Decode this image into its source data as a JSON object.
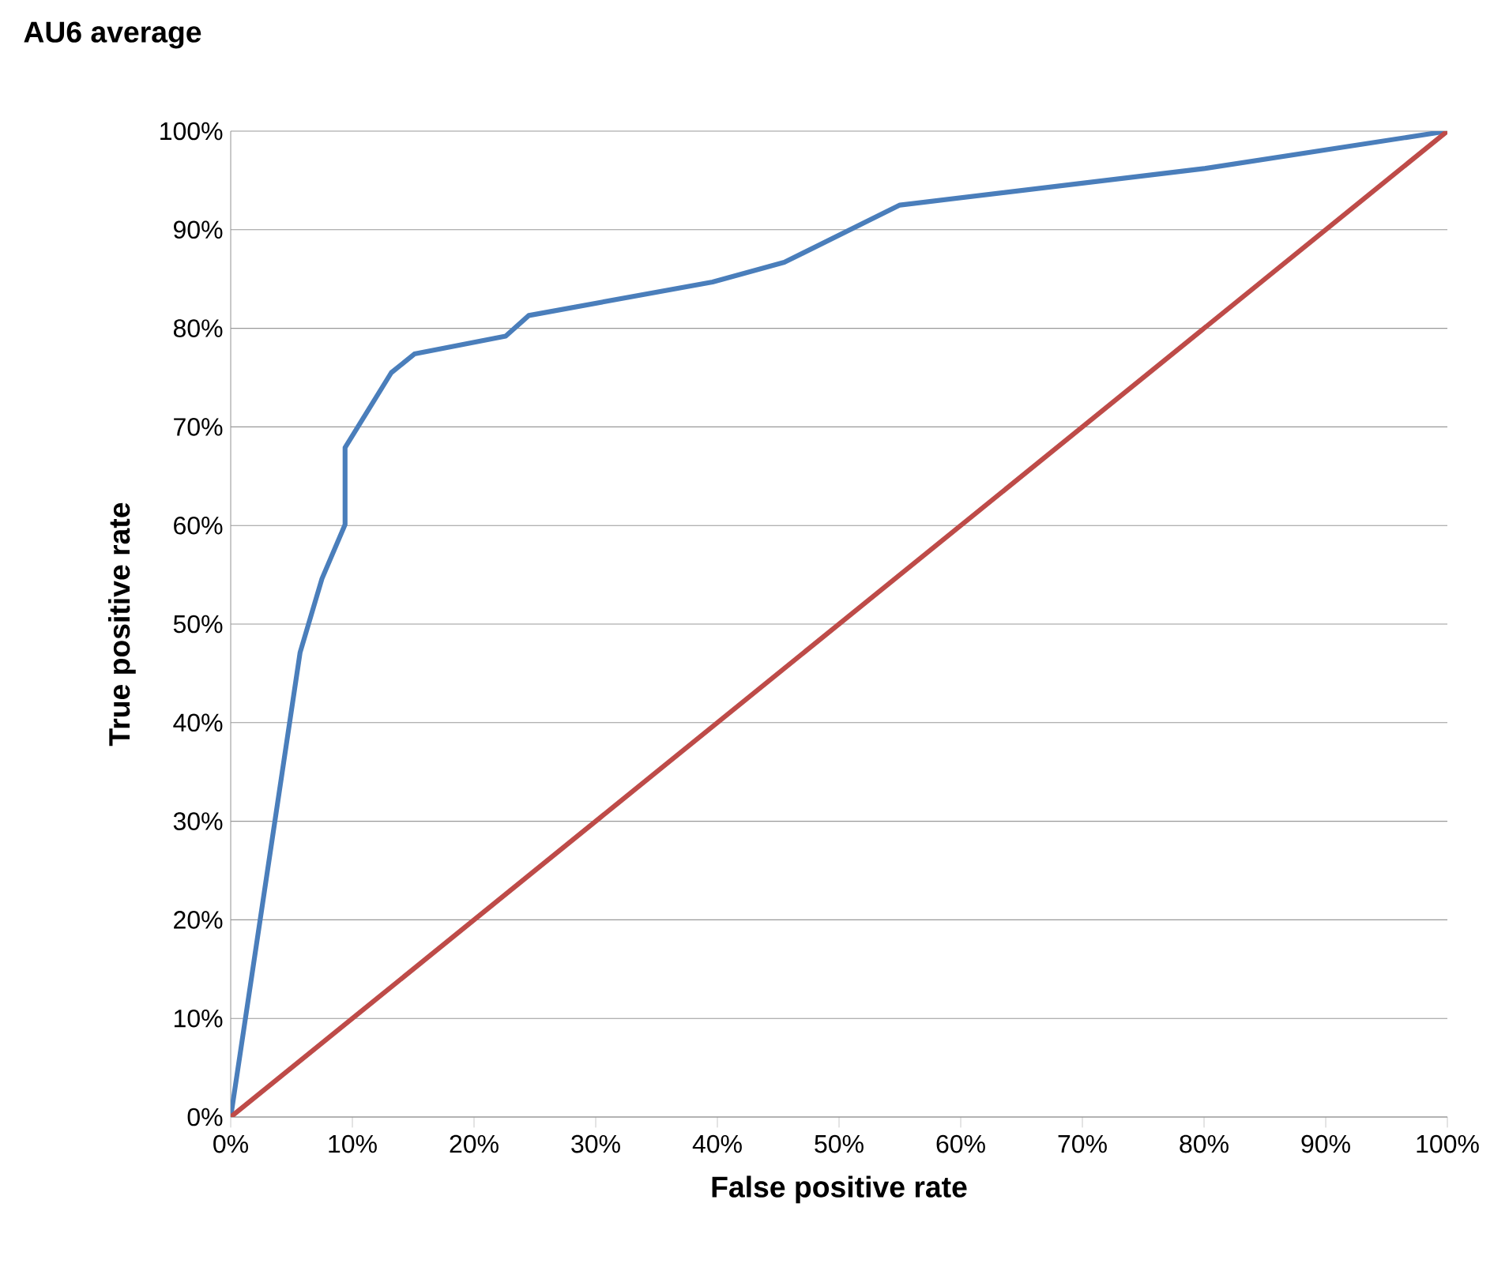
{
  "chart_data": {
    "type": "line",
    "title": "AU6 average",
    "xlabel": "False positive rate",
    "ylabel": "True positive rate",
    "xlim": [
      0,
      100
    ],
    "ylim": [
      0,
      100
    ],
    "xticks": [
      {
        "value": 0,
        "label": "0%"
      },
      {
        "value": 10,
        "label": "10%"
      },
      {
        "value": 20,
        "label": "20%"
      },
      {
        "value": 30,
        "label": "30%"
      },
      {
        "value": 40,
        "label": "40%"
      },
      {
        "value": 50,
        "label": "50%"
      },
      {
        "value": 60,
        "label": "60%"
      },
      {
        "value": 70,
        "label": "70%"
      },
      {
        "value": 80,
        "label": "80%"
      },
      {
        "value": 90,
        "label": "90%"
      },
      {
        "value": 100,
        "label": "100%"
      }
    ],
    "yticks": [
      {
        "value": 0,
        "label": "0%"
      },
      {
        "value": 10,
        "label": "10%"
      },
      {
        "value": 20,
        "label": "20%"
      },
      {
        "value": 30,
        "label": "30%"
      },
      {
        "value": 40,
        "label": "40%"
      },
      {
        "value": 50,
        "label": "50%"
      },
      {
        "value": 60,
        "label": "60%"
      },
      {
        "value": 70,
        "label": "70%"
      },
      {
        "value": 80,
        "label": "80%"
      },
      {
        "value": 90,
        "label": "90%"
      },
      {
        "value": 100,
        "label": "100%"
      }
    ],
    "grid": "y",
    "marker": "none",
    "line_style": "solid",
    "series": [
      {
        "color": "#4a7ebb",
        "x": [
          0,
          5.7,
          7.5,
          9.4,
          9.4,
          13.2,
          15.1,
          22.6,
          24.5,
          39.6,
          45.5,
          55.0,
          80.0,
          100
        ],
        "values": [
          0,
          47.1,
          54.6,
          60.1,
          67.9,
          75.5,
          77.4,
          79.2,
          81.3,
          84.7,
          86.7,
          92.5,
          96.2,
          100
        ]
      },
      {
        "color": "#be4b48",
        "x": [
          0,
          100
        ],
        "values": [
          0,
          100
        ]
      }
    ]
  }
}
